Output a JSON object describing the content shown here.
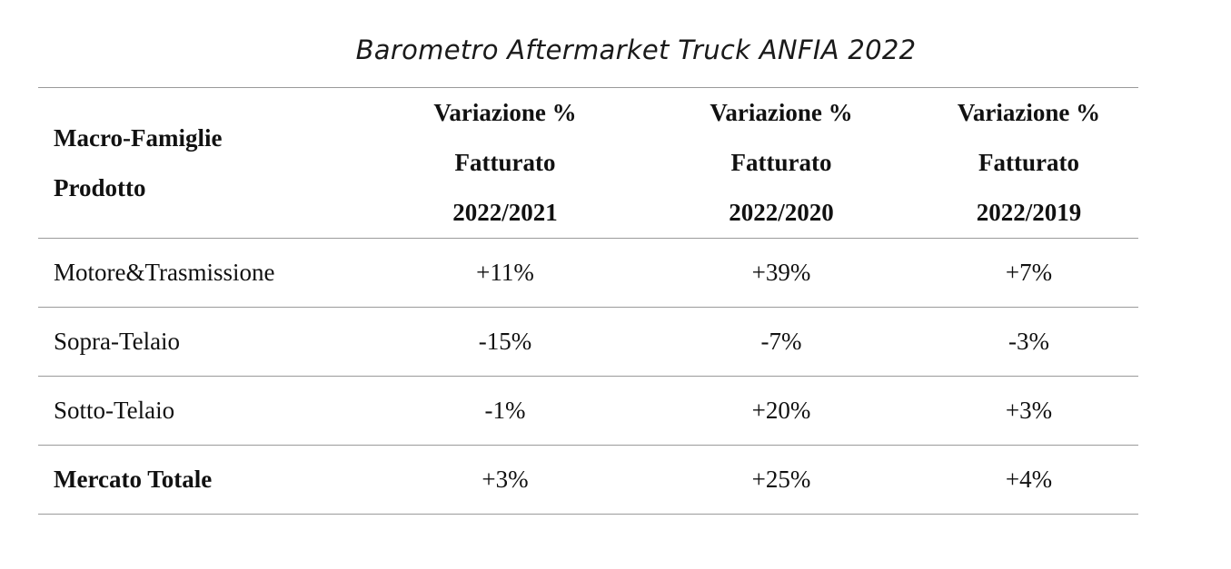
{
  "title": "Barometro Aftermarket Truck ANFIA 2022",
  "table": {
    "headers": [
      {
        "lines": [
          "Macro-Famiglie",
          "Prodotto"
        ]
      },
      {
        "lines": [
          "Variazione %",
          "Fatturato",
          "2022/2021"
        ]
      },
      {
        "lines": [
          "Variazione %",
          "Fatturato",
          "2022/2020"
        ]
      },
      {
        "lines": [
          "Variazione %",
          "Fatturato",
          "2022/2019"
        ]
      }
    ],
    "rows": [
      {
        "label": "Motore&Trasmissione",
        "values": [
          "+11%",
          "+39%",
          "+7%"
        ]
      },
      {
        "label": "Sopra-Telaio",
        "values": [
          "-15%",
          "-7%",
          "-3%"
        ]
      },
      {
        "label": "Sotto-Telaio",
        "values": [
          "-1%",
          "+20%",
          "+3%"
        ]
      },
      {
        "label": "Mercato Totale",
        "values": [
          "+3%",
          "+25%",
          "+4%"
        ]
      }
    ]
  }
}
